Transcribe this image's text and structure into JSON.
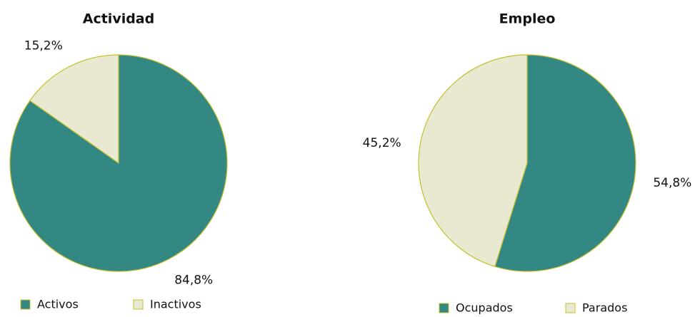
{
  "chart_data": [
    {
      "type": "pie",
      "title": "Actividad",
      "categories": [
        "Activos",
        "Inactivos"
      ],
      "values": [
        84.8,
        15.2
      ],
      "value_labels": [
        "84,8%",
        "15,2%"
      ],
      "colors": [
        "#348883",
        "#e9e9d1"
      ]
    },
    {
      "type": "pie",
      "title": "Empleo",
      "categories": [
        "Ocupados",
        "Parados"
      ],
      "values": [
        54.8,
        45.2
      ],
      "value_labels": [
        "54,8%",
        "45,2%"
      ],
      "colors": [
        "#348883",
        "#e9e9d1"
      ]
    }
  ]
}
